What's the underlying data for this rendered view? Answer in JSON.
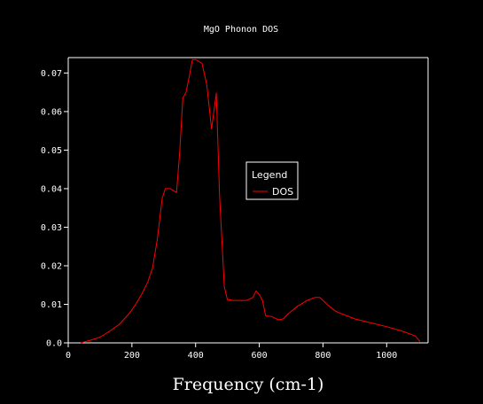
{
  "chart_data": {
    "type": "line",
    "title": "MgO Phonon DOS",
    "xlabel": "Frequency (cm-1)",
    "ylabel": "",
    "xlim": [
      0,
      1130
    ],
    "ylim": [
      0,
      0.074
    ],
    "xticks": [
      0,
      200,
      400,
      600,
      800,
      1000
    ],
    "yticks": [
      0.0,
      0.01,
      0.02,
      0.03,
      0.04,
      0.05,
      0.06,
      0.07
    ],
    "ytick_labels": [
      "0.0",
      "0.01",
      "0.02",
      "0.03",
      "0.04",
      "0.05",
      "0.06",
      "0.07"
    ],
    "grid": false,
    "legend": {
      "title": "Legend",
      "placement": "center-right"
    },
    "series": [
      {
        "name": "DOS",
        "color": "#ff0000",
        "x": [
          40,
          70,
          100,
          130,
          160,
          190,
          210,
          230,
          250,
          265,
          280,
          295,
          305,
          320,
          340,
          350,
          360,
          370,
          380,
          390,
          400,
          420,
          435,
          450,
          465,
          475,
          490,
          500,
          520,
          540,
          560,
          580,
          590,
          600,
          610,
          620,
          640,
          660,
          675,
          690,
          720,
          750,
          775,
          790,
          800,
          820,
          840,
          860,
          900,
          950,
          1000,
          1050,
          1090,
          1105
        ],
        "y": [
          0.0,
          0.0007,
          0.0015,
          0.003,
          0.0048,
          0.0075,
          0.0098,
          0.0125,
          0.0158,
          0.0195,
          0.027,
          0.0375,
          0.04,
          0.04,
          0.039,
          0.0495,
          0.0635,
          0.065,
          0.069,
          0.0735,
          0.0735,
          0.0725,
          0.067,
          0.0555,
          0.0648,
          0.0385,
          0.0145,
          0.0112,
          0.011,
          0.011,
          0.011,
          0.0118,
          0.0135,
          0.0125,
          0.011,
          0.007,
          0.0068,
          0.006,
          0.0062,
          0.0075,
          0.0095,
          0.011,
          0.0118,
          0.0118,
          0.011,
          0.0095,
          0.0082,
          0.0075,
          0.0062,
          0.0052,
          0.0042,
          0.003,
          0.0018,
          0.0003
        ]
      }
    ]
  }
}
